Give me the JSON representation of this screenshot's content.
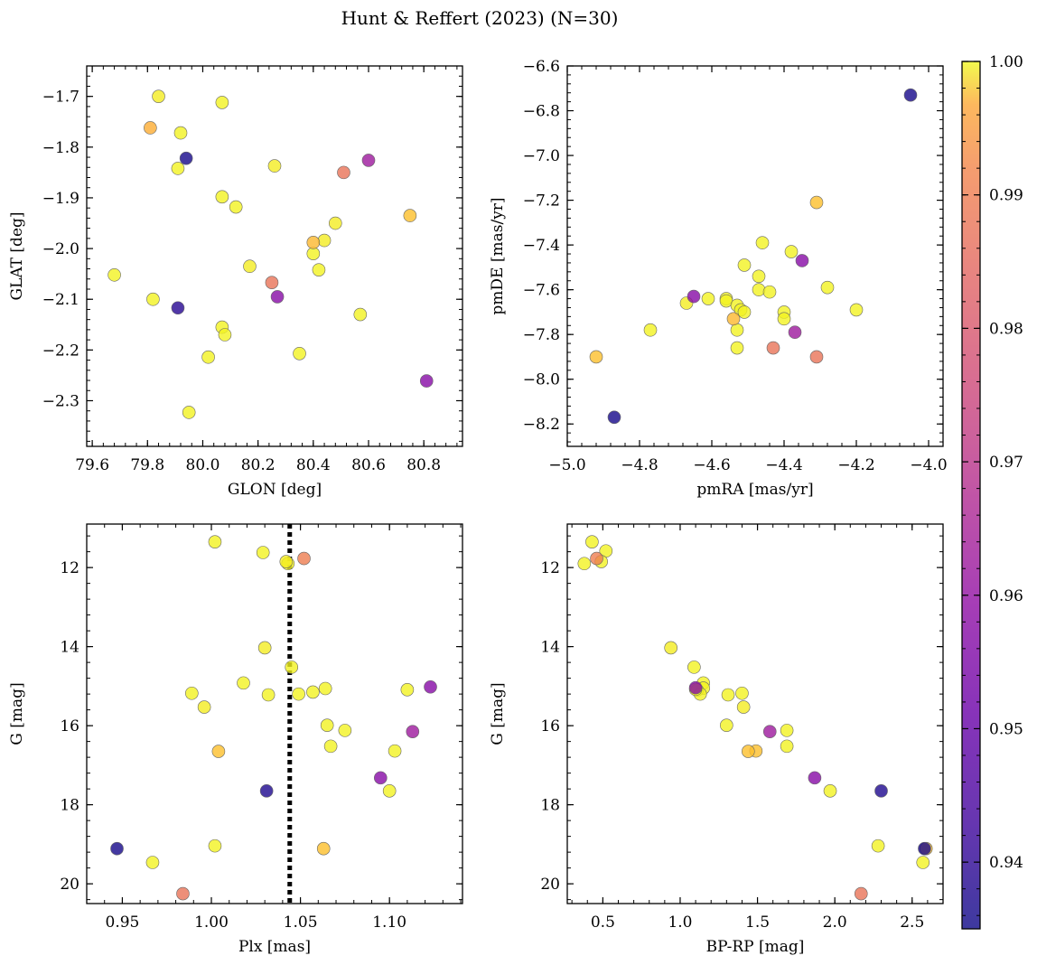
{
  "figure": {
    "title": "Hunt & Reffert (2023) (N=30)"
  },
  "colorbar": {
    "min": 0.935,
    "max": 1.0,
    "ticks": [
      0.94,
      0.95,
      0.96,
      0.97,
      0.98,
      0.99,
      1.0
    ],
    "tick_labels": [
      "0.94",
      "0.95",
      "0.96",
      "0.97",
      "0.98",
      "0.99",
      "1.00"
    ],
    "colormap": "plasma"
  },
  "chart_data": [
    {
      "type": "scatter",
      "id": "glon-glat",
      "xlabel": "GLON [deg]",
      "ylabel": "GLAT [deg]",
      "xlim": [
        79.58,
        80.94
      ],
      "ylim": [
        -2.39,
        -1.64
      ],
      "y_inverted": false,
      "xticks": [
        79.6,
        79.8,
        80.0,
        80.2,
        80.4,
        80.6,
        80.8
      ],
      "xtick_labels": [
        "79.6",
        "79.8",
        "80.0",
        "80.2",
        "80.4",
        "80.6",
        "80.8"
      ],
      "yticks": [
        -2.3,
        -2.2,
        -2.1,
        -2.0,
        -1.9,
        -1.8,
        -1.7
      ],
      "ytick_labels": [
        "−2.3",
        "−2.2",
        "−2.1",
        "−2.0",
        "−1.9",
        "−1.8",
        "−1.7"
      ],
      "x": [
        79.84,
        79.81,
        79.92,
        79.94,
        79.91,
        80.07,
        80.26,
        80.51,
        80.6,
        80.07,
        80.12,
        80.48,
        80.75,
        80.4,
        80.44,
        80.4,
        80.17,
        80.42,
        79.68,
        79.82,
        80.25,
        80.27,
        79.91,
        80.57,
        80.07,
        80.08,
        80.02,
        80.35,
        79.95,
        80.81
      ],
      "y": [
        -1.7,
        -1.762,
        -1.772,
        -1.822,
        -1.842,
        -1.712,
        -1.837,
        -1.85,
        -1.826,
        -1.898,
        -1.918,
        -1.95,
        -1.935,
        -1.988,
        -1.984,
        -2.01,
        -2.035,
        -2.042,
        -2.052,
        -2.1,
        -2.067,
        -2.095,
        -2.117,
        -2.13,
        -2.155,
        -2.17,
        -2.214,
        -2.207,
        -2.323,
        -2.261
      ],
      "c": [
        0.998,
        0.988,
        0.999,
        0.936,
        0.999,
        0.999,
        0.998,
        0.977,
        0.957,
        0.999,
        0.999,
        0.998,
        0.991,
        0.99,
        0.998,
        0.999,
        0.998,
        0.999,
        0.999,
        0.999,
        0.977,
        0.953,
        0.938,
        0.999,
        0.999,
        0.999,
        0.999,
        0.999,
        0.999,
        0.953
      ]
    },
    {
      "type": "scatter",
      "id": "pmra-pmde",
      "xlabel": "pmRA [mas/yr]",
      "ylabel": "pmDE [mas/yr]",
      "xlim": [
        -5.0,
        -3.96
      ],
      "ylim": [
        -8.3,
        -6.6
      ],
      "y_inverted": false,
      "xticks": [
        -5.0,
        -4.8,
        -4.6,
        -4.4,
        -4.2,
        -4.0
      ],
      "xtick_labels": [
        "−5.0",
        "−4.8",
        "−4.6",
        "−4.4",
        "−4.2",
        "−4.0"
      ],
      "yticks": [
        -8.2,
        -8.0,
        -7.8,
        -7.6,
        -7.4,
        -7.2,
        -7.0,
        -6.8,
        -6.6
      ],
      "ytick_labels": [
        "−8.2",
        "−8.0",
        "−7.8",
        "−7.6",
        "−7.4",
        "−7.2",
        "−7.0",
        "−6.8",
        "−6.6"
      ],
      "x": [
        -4.05,
        -4.31,
        -4.46,
        -4.38,
        -4.35,
        -4.51,
        -4.47,
        -4.47,
        -4.44,
        -4.28,
        -4.56,
        -4.61,
        -4.65,
        -4.67,
        -4.56,
        -4.53,
        -4.52,
        -4.51,
        -4.4,
        -4.4,
        -4.2,
        -4.54,
        -4.53,
        -4.37,
        -4.77,
        -4.53,
        -4.43,
        -4.31,
        -4.92,
        -4.87
      ],
      "y": [
        -6.73,
        -7.21,
        -7.39,
        -7.43,
        -7.47,
        -7.49,
        -7.54,
        -7.6,
        -7.61,
        -7.59,
        -7.64,
        -7.64,
        -7.63,
        -7.66,
        -7.65,
        -7.67,
        -7.69,
        -7.7,
        -7.7,
        -7.73,
        -7.69,
        -7.73,
        -7.78,
        -7.79,
        -7.78,
        -7.86,
        -7.86,
        -7.9,
        -7.9,
        -8.17
      ],
      "c": [
        0.936,
        0.991,
        0.999,
        0.999,
        0.953,
        0.999,
        0.999,
        0.999,
        0.999,
        0.999,
        0.999,
        0.999,
        0.953,
        0.998,
        0.999,
        0.999,
        0.999,
        0.999,
        0.999,
        0.999,
        0.999,
        0.99,
        0.999,
        0.957,
        0.999,
        0.999,
        0.977,
        0.977,
        0.991,
        0.936
      ]
    },
    {
      "type": "scatter",
      "id": "plx-g",
      "xlabel": "Plx [mas]",
      "ylabel": "G [mag]",
      "xlim": [
        0.93,
        1.141
      ],
      "ylim": [
        20.5,
        10.9
      ],
      "y_inverted": true,
      "vline": {
        "x": 1.044,
        "style": "dotted",
        "color": "#000000"
      },
      "xticks": [
        0.95,
        1.0,
        1.05,
        1.1
      ],
      "xtick_labels": [
        "0.95",
        "1.00",
        "1.05",
        "1.10"
      ],
      "yticks": [
        12,
        14,
        16,
        18,
        20
      ],
      "ytick_labels": [
        "12",
        "14",
        "16",
        "18",
        "20"
      ],
      "x": [
        1.002,
        1.029,
        1.042,
        1.043,
        1.052,
        1.03,
        1.045,
        1.018,
        0.989,
        1.032,
        1.049,
        1.057,
        1.064,
        1.123,
        1.11,
        0.996,
        1.065,
        1.075,
        1.113,
        1.004,
        1.067,
        1.103,
        1.095,
        1.031,
        1.1,
        1.002,
        0.947,
        1.063,
        0.967,
        0.984
      ],
      "y": [
        11.35,
        11.62,
        11.85,
        11.9,
        11.77,
        14.03,
        14.52,
        14.92,
        15.18,
        15.22,
        15.2,
        15.15,
        15.06,
        15.02,
        15.09,
        15.53,
        15.99,
        16.12,
        16.15,
        16.65,
        16.52,
        16.64,
        17.32,
        17.65,
        17.65,
        19.04,
        19.11,
        19.11,
        19.46,
        20.25
      ],
      "c": [
        0.999,
        0.999,
        0.998,
        0.999,
        0.979,
        0.998,
        0.999,
        0.999,
        0.999,
        0.999,
        0.999,
        0.999,
        0.999,
        0.953,
        0.999,
        0.998,
        0.999,
        0.999,
        0.957,
        0.991,
        0.999,
        0.999,
        0.953,
        0.937,
        0.999,
        0.999,
        0.936,
        0.991,
        0.999,
        0.977
      ]
    },
    {
      "type": "scatter",
      "id": "bprp-g",
      "xlabel": "BP-RP [mag]",
      "ylabel": "G [mag]",
      "xlim": [
        0.27,
        2.7
      ],
      "ylim": [
        20.5,
        10.9
      ],
      "y_inverted": true,
      "xticks": [
        0.5,
        1.0,
        1.5,
        2.0,
        2.5
      ],
      "xtick_labels": [
        "0.5",
        "1.0",
        "1.5",
        "2.0",
        "2.5"
      ],
      "yticks": [
        12,
        14,
        16,
        18,
        20
      ],
      "ytick_labels": [
        "12",
        "14",
        "16",
        "18",
        "20"
      ],
      "x": [
        0.43,
        0.52,
        0.46,
        0.49,
        0.38,
        0.94,
        1.09,
        1.15,
        1.15,
        1.11,
        1.1,
        1.13,
        1.31,
        1.4,
        1.41,
        1.3,
        1.58,
        1.69,
        1.69,
        1.49,
        1.44,
        1.87,
        1.97,
        2.3,
        2.28,
        2.59,
        2.58,
        2.57,
        2.17,
        1.1
      ],
      "y": [
        11.35,
        11.58,
        11.77,
        11.85,
        11.9,
        14.03,
        14.52,
        14.92,
        15.05,
        15.1,
        15.04,
        15.2,
        15.22,
        15.18,
        15.53,
        15.99,
        16.15,
        16.12,
        16.52,
        16.64,
        16.65,
        17.32,
        17.65,
        17.65,
        19.04,
        19.11,
        19.11,
        19.46,
        20.25,
        15.08
      ],
      "c": [
        0.999,
        0.999,
        0.979,
        0.999,
        0.999,
        0.998,
        0.999,
        0.999,
        0.999,
        0.999,
        0.953,
        0.999,
        0.999,
        0.999,
        0.998,
        0.999,
        0.957,
        0.999,
        0.999,
        0.991,
        0.991,
        0.953,
        0.999,
        0.937,
        0.999,
        0.991,
        0.936,
        0.999,
        0.977,
        0.999
      ]
    }
  ]
}
